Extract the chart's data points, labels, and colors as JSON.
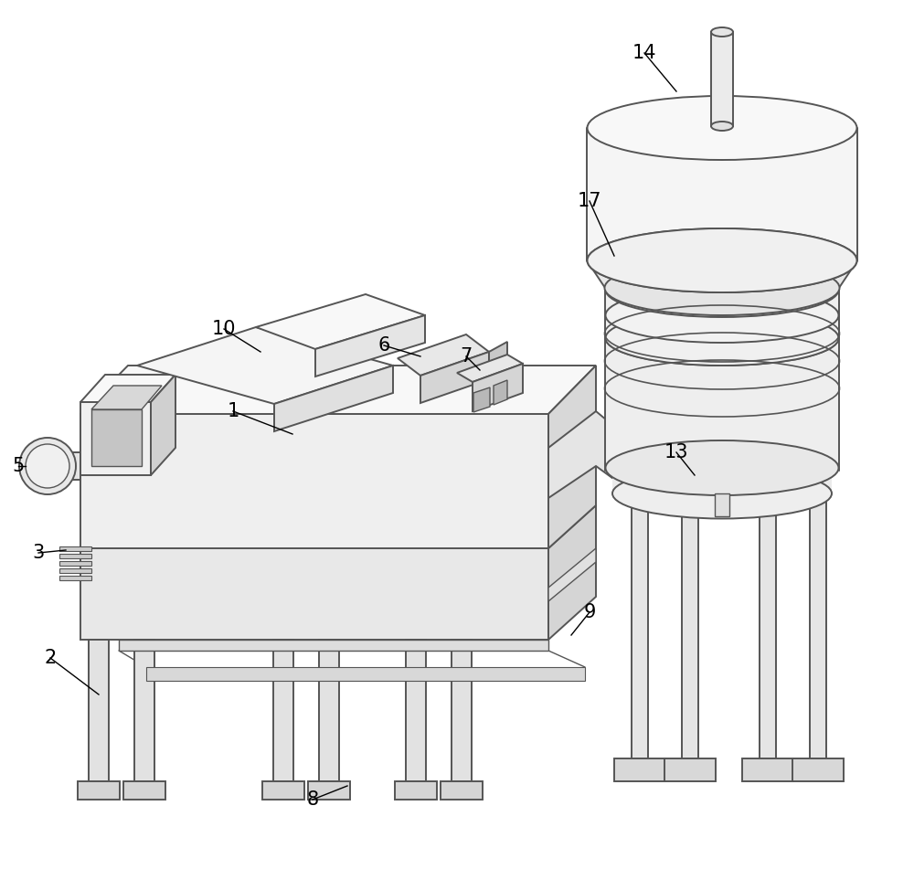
{
  "background_color": "#ffffff",
  "line_color": "#555555",
  "line_width": 1.4,
  "labels_fontsize": 15
}
